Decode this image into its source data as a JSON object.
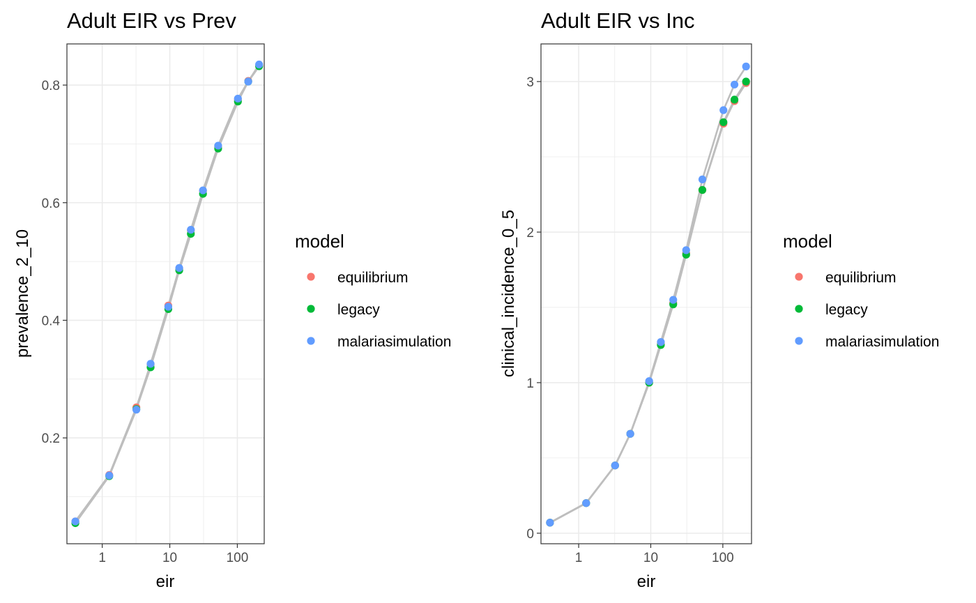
{
  "chart_data": [
    {
      "type": "scatter",
      "title": "Adult EIR vs Prev",
      "xlabel": "eir",
      "ylabel": "prevalence_2_10",
      "x_scale": "log10",
      "xlim": [
        0.3,
        250
      ],
      "ylim": [
        0.02,
        0.87
      ],
      "x_ticks": [
        1,
        10,
        100
      ],
      "x_tick_labels": [
        "1",
        "10",
        "100"
      ],
      "y_ticks": [
        0.2,
        0.4,
        0.6,
        0.8
      ],
      "y_tick_labels": [
        "0.2",
        "0.4",
        "0.6",
        "0.8"
      ],
      "grid": true,
      "legend": {
        "title": "model",
        "position": "right"
      },
      "x": [
        0.4,
        1.27,
        3.2,
        5.2,
        9.5,
        13.8,
        20.5,
        31,
        52,
        102,
        145,
        210
      ],
      "series": [
        {
          "name": "equilibrium",
          "color": "#F8766D",
          "values": [
            0.058,
            0.137,
            0.252,
            0.325,
            0.425,
            0.488,
            0.553,
            0.62,
            0.695,
            0.775,
            0.807,
            0.833
          ]
        },
        {
          "name": "legacy",
          "color": "#00BA38",
          "values": [
            0.055,
            0.135,
            0.249,
            0.32,
            0.419,
            0.485,
            0.547,
            0.615,
            0.692,
            0.772,
            0.806,
            0.832
          ]
        },
        {
          "name": "malariasimulation",
          "color": "#619CFF",
          "values": [
            0.058,
            0.136,
            0.248,
            0.326,
            0.423,
            0.489,
            0.554,
            0.621,
            0.697,
            0.777,
            0.806,
            0.835
          ]
        }
      ]
    },
    {
      "type": "scatter",
      "title": "Adult EIR vs Inc",
      "xlabel": "eir",
      "ylabel": "clinical_incidence_0_5",
      "x_scale": "log10",
      "xlim": [
        0.3,
        250
      ],
      "ylim": [
        -0.07,
        3.25
      ],
      "x_ticks": [
        1,
        10,
        100
      ],
      "x_tick_labels": [
        "1",
        "10",
        "100"
      ],
      "y_ticks": [
        0,
        1,
        2,
        3
      ],
      "y_tick_labels": [
        "0",
        "1",
        "2",
        "3"
      ],
      "grid": true,
      "legend": {
        "title": "model",
        "position": "right"
      },
      "x": [
        0.4,
        1.27,
        3.2,
        5.2,
        9.5,
        13.8,
        20.5,
        31,
        52,
        102,
        145,
        210
      ],
      "series": [
        {
          "name": "equilibrium",
          "color": "#F8766D",
          "values": [
            0.07,
            0.2,
            0.45,
            0.66,
            1.0,
            1.26,
            1.53,
            1.86,
            2.28,
            2.72,
            2.87,
            2.99
          ]
        },
        {
          "name": "legacy",
          "color": "#00BA38",
          "values": [
            0.07,
            0.2,
            0.45,
            0.66,
            1.0,
            1.25,
            1.52,
            1.85,
            2.28,
            2.73,
            2.88,
            3.0
          ]
        },
        {
          "name": "malariasimulation",
          "color": "#619CFF",
          "values": [
            0.07,
            0.2,
            0.45,
            0.66,
            1.01,
            1.27,
            1.55,
            1.88,
            2.35,
            2.81,
            2.98,
            3.1
          ]
        }
      ]
    }
  ]
}
